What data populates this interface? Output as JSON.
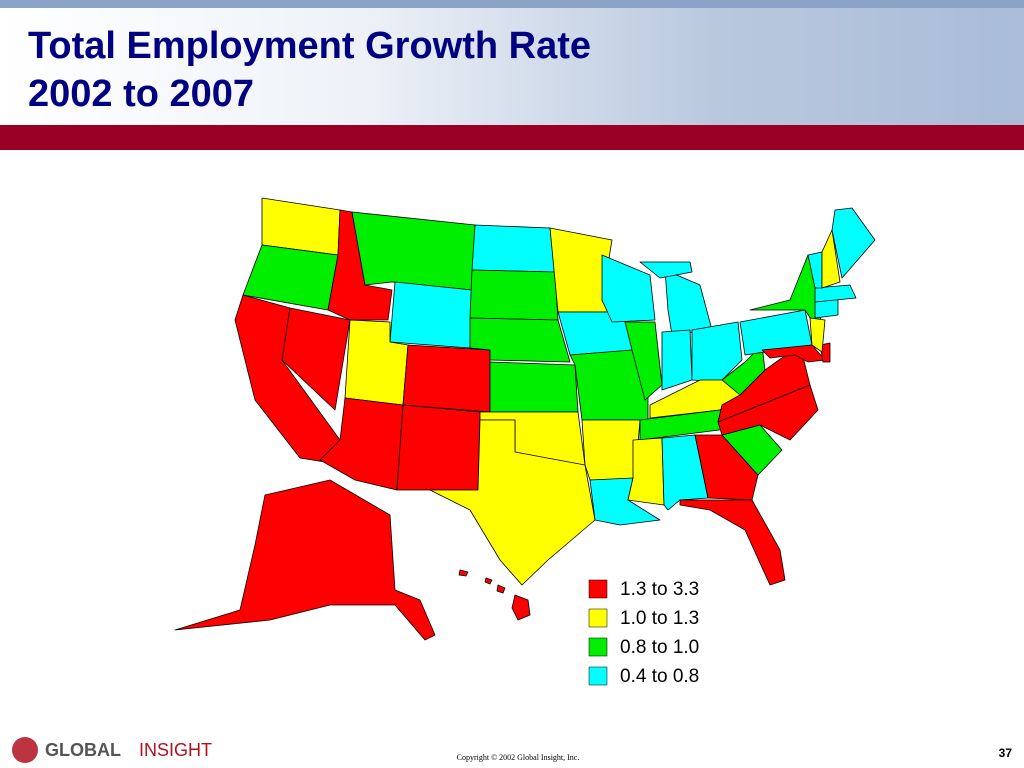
{
  "header": {
    "title_lines": [
      "Total Employment Growth Rate",
      "2002 to 2007"
    ]
  },
  "legend": [
    {
      "label": "1.3 to 3.3",
      "color": "#ff0000"
    },
    {
      "label": "1.0 to 1.3",
      "color": "#ffff00"
    },
    {
      "label": "0.8 to 1.0",
      "color": "#00ee00"
    },
    {
      "label": "0.4 to 0.8",
      "color": "#00ffff"
    }
  ],
  "footer": {
    "logo_bold": "GLOBAL",
    "logo_light": "INSIGHT",
    "copyright": "Copyright © 2002 Global Insight, Inc.",
    "page_number": "37"
  }
}
